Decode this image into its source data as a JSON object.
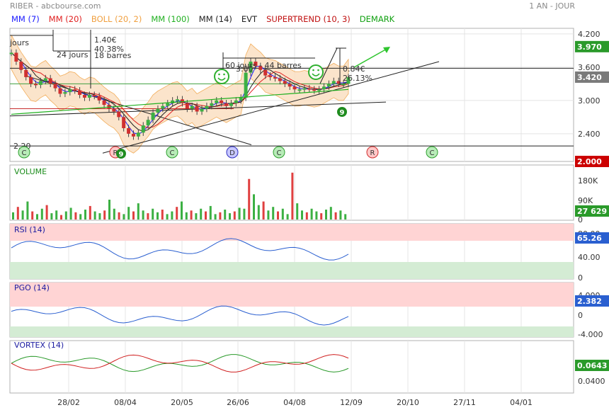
{
  "header": {
    "title": "RIBER - abcbourse.com",
    "period": "1 AN - JOUR"
  },
  "legend": [
    {
      "label": "MM (7)",
      "color": "#1a1aff"
    },
    {
      "label": "MM (20)",
      "color": "#e02020"
    },
    {
      "label": "BOLL (20, 2)",
      "color": "#f0a040"
    },
    {
      "label": "MM (100)",
      "color": "#20b020"
    },
    {
      "label": "MM (14)",
      "color": "#222222"
    },
    {
      "label": "EVT",
      "color": "#222222"
    },
    {
      "label": "SUPERTREND (10, 3)",
      "color": "#c01010"
    },
    {
      "label": "DEMARK",
      "color": "#10a010"
    }
  ],
  "x_ticks": [
    "28/02",
    "08/04",
    "20/05",
    "26/06",
    "04/08",
    "12/09",
    "20/10",
    "27/11",
    "04/01"
  ],
  "price": {
    "ticks": [
      "4.200",
      "3.600",
      "3.000",
      "2.400"
    ],
    "last_badge": "3.420",
    "high_badge": "3.970",
    "low_badge": "2.000",
    "annotations": {
      "left_days": "jours",
      "days24": "24 jours",
      "pct1": "1.40€",
      "pct2": "40.38%",
      "bars18": "18 barres",
      "days60": "60 jours - 44 barres",
      "top": "3.60",
      "pct3": "0.84€",
      "pct4": "26.13%",
      "level": "2.20"
    },
    "markers": [
      "C",
      "R",
      "C",
      "D",
      "C",
      "R",
      "C"
    ],
    "closes": [
      3.86,
      3.7,
      3.55,
      3.42,
      3.3,
      3.28,
      3.35,
      3.4,
      3.3,
      3.22,
      3.12,
      3.15,
      3.2,
      3.18,
      3.1,
      3.05,
      3.1,
      3.08,
      3.0,
      2.92,
      2.85,
      2.8,
      2.7,
      2.5,
      2.4,
      2.35,
      2.42,
      2.55,
      2.65,
      2.78,
      2.85,
      2.9,
      2.95,
      3.0,
      3.02,
      2.95,
      2.85,
      2.9,
      2.8,
      2.85,
      2.9,
      2.95,
      3.0,
      2.95,
      2.9,
      2.95,
      3.0,
      3.05,
      3.5,
      3.7,
      3.62,
      3.55,
      3.45,
      3.42,
      3.4,
      3.35,
      3.3,
      3.25,
      3.2,
      3.2,
      3.22,
      3.2,
      3.18,
      3.2,
      3.25,
      3.3,
      3.35,
      3.3,
      3.3,
      3.42
    ]
  },
  "volume": {
    "title": "VOLUME",
    "ticks": [
      "180K",
      "90K",
      "0"
    ],
    "badge": "27 629"
  },
  "rsi": {
    "title": "RSI (14)",
    "ticks": [
      "80.00",
      "40.00",
      "0"
    ],
    "badge": "65.26"
  },
  "pgo": {
    "title": "PGO (14)",
    "ticks": [
      "4.000",
      "0",
      "-4.000"
    ],
    "badge": "2.382"
  },
  "vortex": {
    "title": "VORTEX (14)",
    "ticks": [
      "0.0400"
    ],
    "badge": "0.0643"
  },
  "chart_data": {
    "type": "line",
    "title": "RIBER",
    "x": [
      "28/02",
      "08/04",
      "20/05",
      "26/06",
      "04/08",
      "12/09"
    ],
    "series": [
      {
        "name": "RIBER",
        "values": [
          3.3,
          2.45,
          2.9,
          3.7,
          3.25,
          3.42
        ]
      }
    ],
    "ylim": [
      2.0,
      4.3
    ]
  }
}
